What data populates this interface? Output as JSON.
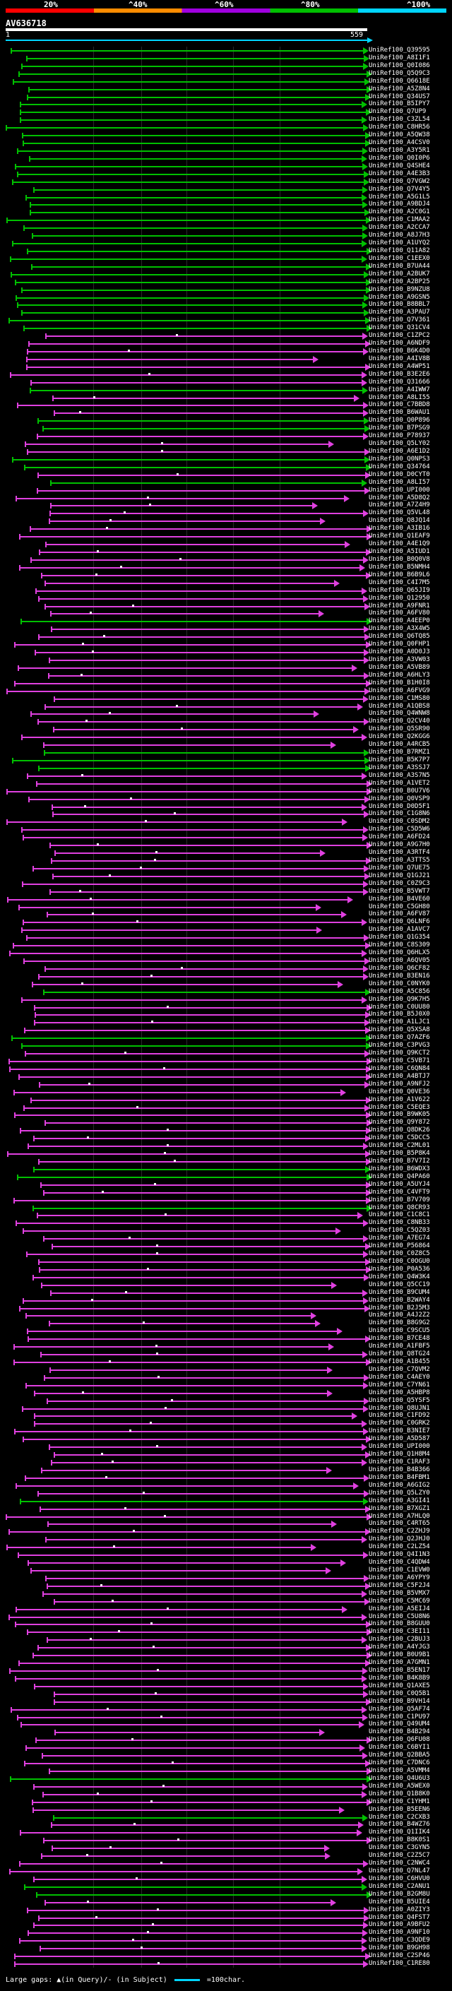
{
  "scale": {
    "labels": [
      "20%",
      "^40%",
      "^60%",
      "^80%",
      "^100%"
    ],
    "colors": [
      "#ff0000",
      "#ff8c00",
      "#a000e0",
      "#00c000",
      "#00d5ff"
    ]
  },
  "title": "AV636718",
  "query": {
    "start_label": "1",
    "end_label": "559"
  },
  "hit_colors": {
    "pink": "#e040e0",
    "green": "#00c000",
    "cyan": "#00d5ff"
  },
  "ids": [
    "UniRef100_Q39595",
    "UniRef100_A8I1F1",
    "UniRef100_Q0I086",
    "UniRef100_Q5Q9C3",
    "UniRef100_Q6618E",
    "UniRef100_A5Z8N4",
    "UniRef100_Q34US7",
    "UniRef100_B5IPY7",
    "UniRef100_Q7UP9",
    "UniRef100_C3ZL54",
    "UniRef100_C8HR56",
    "UniRef100_A5QW38",
    "UniRef100_A4CSV0",
    "UniRef100_A3Y5R1",
    "UniRef100_Q0I0P6",
    "UniRef100_Q4SHE4",
    "UniRef100_A4E3B3",
    "UniRef100_Q7VGW2",
    "UniRef100_Q7V4Y5",
    "UniRef100_A5G1L5",
    "UniRef100_A9BDJ4",
    "UniRef100_A2C0G1",
    "UniRef100_C1MAA2",
    "UniRef100_A2CCA7",
    "UniRef100_A8J7H3",
    "UniRef100_A1UYQ2",
    "UniRef100_Q11A82",
    "UniRef100_C1EEX0",
    "UniRef100_B7UA44",
    "UniRef100_A2BUK7",
    "UniRef100_A2BP25",
    "UniRef100_B9NZU8",
    "UniRef100_A9GSN5",
    "UniRef100_B8BBL7",
    "UniRef100_A3PAU7",
    "UniRef100_Q7V361",
    "UniRef100_Q31CV4",
    "UniRef100_C1ZPC2",
    "UniRef100_A6NDF9",
    "UniRef100_B6K4D0",
    "UniRef100_A4IV8B",
    "UniRef100_A4WP51",
    "UniRef100_B3E2E6",
    "UniRef100_Q31666",
    "UniRef100_A4IWW7",
    "UniRef100_A8LI55",
    "UniRef100_C7BBD8",
    "UniRef100_B6WAU1",
    "UniRef100_Q0P896",
    "UniRef100_B7PSG9",
    "UniRef100_P78937",
    "UniRef100_Q5LY02",
    "UniRef100_A6E1D2",
    "UniRef100_Q0NPS3",
    "UniRef100_Q34764",
    "UniRef100_D0CYT0",
    "UniRef100_A8LI57",
    "UniRef100_UPI000",
    "UniRef100_A5D8Q2",
    "UniRef100_A7Z4H9",
    "UniRef100_Q5VL48",
    "UniRef100_Q8JQ14",
    "UniRef100_A3IB16",
    "UniRef100_Q1EAF9",
    "UniRef100_A4E1Q9",
    "UniRef100_A5IUD1",
    "UniRef100_B0Q0V8",
    "UniRef100_B5NMH4",
    "UniRef100_B6B9L6",
    "UniRef100_C4I7M5",
    "UniRef100_Q65JI9",
    "UniRef100_Q12950",
    "UniRef100_A9FNR1",
    "UniRef100_A6FV80",
    "UniRef100_A4EEP0",
    "UniRef100_A3X4W5",
    "UniRef100_Q6TQ85",
    "UniRef100_Q0FHP1",
    "UniRef100_A0D0J3",
    "UniRef100_A3VW03",
    "UniRef100_A5VB89",
    "UniRef100_A6HLY3",
    "UniRef100_B1H0I8",
    "UniRef100_A6FVG9",
    "UniRef100_C1MS80",
    "UniRef100_A1QBS8",
    "UniRef100_Q4WNW8",
    "UniRef100_Q2CV40",
    "UniRef100_Q5SR90",
    "UniRef100_Q2KGG6",
    "UniRef100_A4RCB5",
    "UniRef100_B7RMZ1",
    "UniRef100_B5K7P7",
    "UniRef100_A3SSJ7",
    "UniRef100_A3S7N5",
    "UniRef100_A1VET2",
    "UniRef100_B0U7V6",
    "UniRef100_Q0VSP9",
    "UniRef100_D0D5F1",
    "UniRef100_C1G8N6",
    "UniRef100_C0SDM2",
    "UniRef100_C5D5W6",
    "UniRef100_A6FD24",
    "UniRef100_A9G7H0",
    "UniRef100_A3RTF4",
    "UniRef100_A3TTS5",
    "UniRef100_Q7UE75",
    "UniRef100_Q1GJ21",
    "UniRef100_C0Z9C3",
    "UniRef100_B5VWT7",
    "UniRef100_B4VE60",
    "UniRef100_C5GH80",
    "UniRef100_A6FV87",
    "UniRef100_Q6LNF6",
    "UniRef100_A1AVC7",
    "UniRef100_Q1G354",
    "UniRef100_C8S309",
    "UniRef100_Q6HLX5",
    "UniRef100_A6QV05",
    "UniRef100_Q6CF82",
    "UniRef100_B3EN16",
    "UniRef100_C0NYK0",
    "UniRef100_A5C856",
    "UniRef100_Q9K7H5",
    "UniRef100_C0UU80",
    "UniRef100_B5J0X0",
    "UniRef100_A1LJC1",
    "UniRef100_Q5XSA8",
    "UniRef100_Q7AZF6",
    "UniRef100_C3PVG3",
    "UniRef100_Q9KCT2",
    "UniRef100_C5VB71",
    "UniRef100_C6QN84",
    "UniRef100_A4BTJ7",
    "UniRef100_A9NFJ2",
    "UniRef100_Q0VE36",
    "UniRef100_A1V622",
    "UniRef100_C5EQE3",
    "UniRef100_B9WK05",
    "UniRef100_Q9Y872",
    "UniRef100_Q8DK26",
    "UniRef100_C5DCC5",
    "UniRef100_C2ML01",
    "UniRef100_B5P8K4",
    "UniRef100_B7V7I2",
    "UniRef100_B6WDX3",
    "UniRef100_Q4PA60",
    "UniRef100_A5UYJ4",
    "UniRef100_C4VFT9",
    "UniRef100_B7V709",
    "UniRef100_Q8CR93",
    "UniRef100_C1C8C1",
    "UniRef100_C8NB33",
    "UniRef100_C5QZ03",
    "UniRef100_A7EG74",
    "UniRef100_P56864",
    "UniRef100_C0Z8C5",
    "UniRef100_C0OGU0",
    "UniRef100_P0A536",
    "UniRef100_Q4W3K4",
    "UniRef100_Q5CC19",
    "UniRef100_B9CUM4",
    "UniRef100_B2WAY4",
    "UniRef100_B2J5M3",
    "UniRef100_A4J2Z2",
    "UniRef100_B8G9G2",
    "UniRef100_C9SCU5",
    "UniRef100_B7CE48",
    "UniRef100_A1FBF5",
    "UniRef100_Q8TG24",
    "UniRef100_A1B455",
    "UniRef100_C7QVM2",
    "UniRef100_C4AEY0",
    "UniRef100_C7YN61",
    "UniRef100_A5HBP8",
    "UniRef100_Q5YSF5",
    "UniRef100_Q8UJN1",
    "UniRef100_C1FD92",
    "UniRef100_C0GRK2",
    "UniRef100_B3NIE7",
    "UniRef100_A5D587",
    "UniRef100_UPI000",
    "UniRef100_Q1H8M4",
    "UniRef100_C1RAF3",
    "UniRef100_B4B366",
    "UniRef100_B4FBM1",
    "UniRef100_A6GIG2",
    "UniRef100_Q5LZY0",
    "UniRef100_A3GI41",
    "UniRef100_B7XGZ1",
    "UniRef100_A7HLQ0",
    "UniRef100_C4RT65",
    "UniRef100_C2ZHJ9",
    "UniRef100_Q2JHJ0",
    "UniRef100_C2LZ54",
    "UniRef100_Q4I1N3",
    "UniRef100_C4QDW4",
    "UniRef100_C1EVW0",
    "UniRef100_A6YPY9",
    "UniRef100_C5F2J4",
    "UniRef100_B5VMX7",
    "UniRef100_C5MC69",
    "UniRef100_A5EIJ4",
    "UniRef100_C5U8N6",
    "UniRef100_B8GUU0",
    "UniRef100_C3EI11",
    "UniRef100_C2BUJ3",
    "UniRef100_A4YJG3",
    "UniRef100_B0U9B1",
    "UniRef100_A7GMN1",
    "UniRef100_B5EN17",
    "UniRef100_B4K8B9",
    "UniRef100_Q1AXE5",
    "UniRef100_C0Q5B1",
    "UniRef100_B9VH14",
    "UniRef100_Q5AF74",
    "UniRef100_C1PU97",
    "UniRef100_Q49UM4",
    "UniRef100_B4B294",
    "UniRef100_Q6FU08",
    "UniRef100_C6BYI1",
    "UniRef100_Q2BBA5",
    "UniRef100_C7DNC6",
    "UniRef100_A5VMM4",
    "UniRef100_Q4U6U3",
    "UniRef100_A5WEX0",
    "UniRef100_Q1B8K0",
    "UniRef100_C1YHM1",
    "UniRef100_B5EEN6",
    "UniRef100_C2CXB3",
    "UniRef100_B4WZ76",
    "UniRef100_Q1IIK4",
    "UniRef100_B8K0S1",
    "UniRef100_C3GYN5",
    "UniRef100_C2Z5C7",
    "UniRef100_C2NWC4",
    "UniRef100_Q7NL47",
    "UniRef100_C6HVU0",
    "UniRef100_C2ANU1",
    "UniRef100_B2GM8U",
    "UniRef100_B5UIE4",
    "UniRef100_A0ZIY3",
    "UniRef100_Q4FST7",
    "UniRef100_A9BFU2",
    "UniRef100_A9NF10",
    "UniRef100_C3QDE9",
    "UniRef100_B9GH98",
    "UniRef100_C2SP46",
    "UniRef100_C1RE80"
  ],
  "legend": {
    "text": "Large gaps: ▲(in Query)/- (in Subject)",
    "scale_text": "=100char."
  }
}
